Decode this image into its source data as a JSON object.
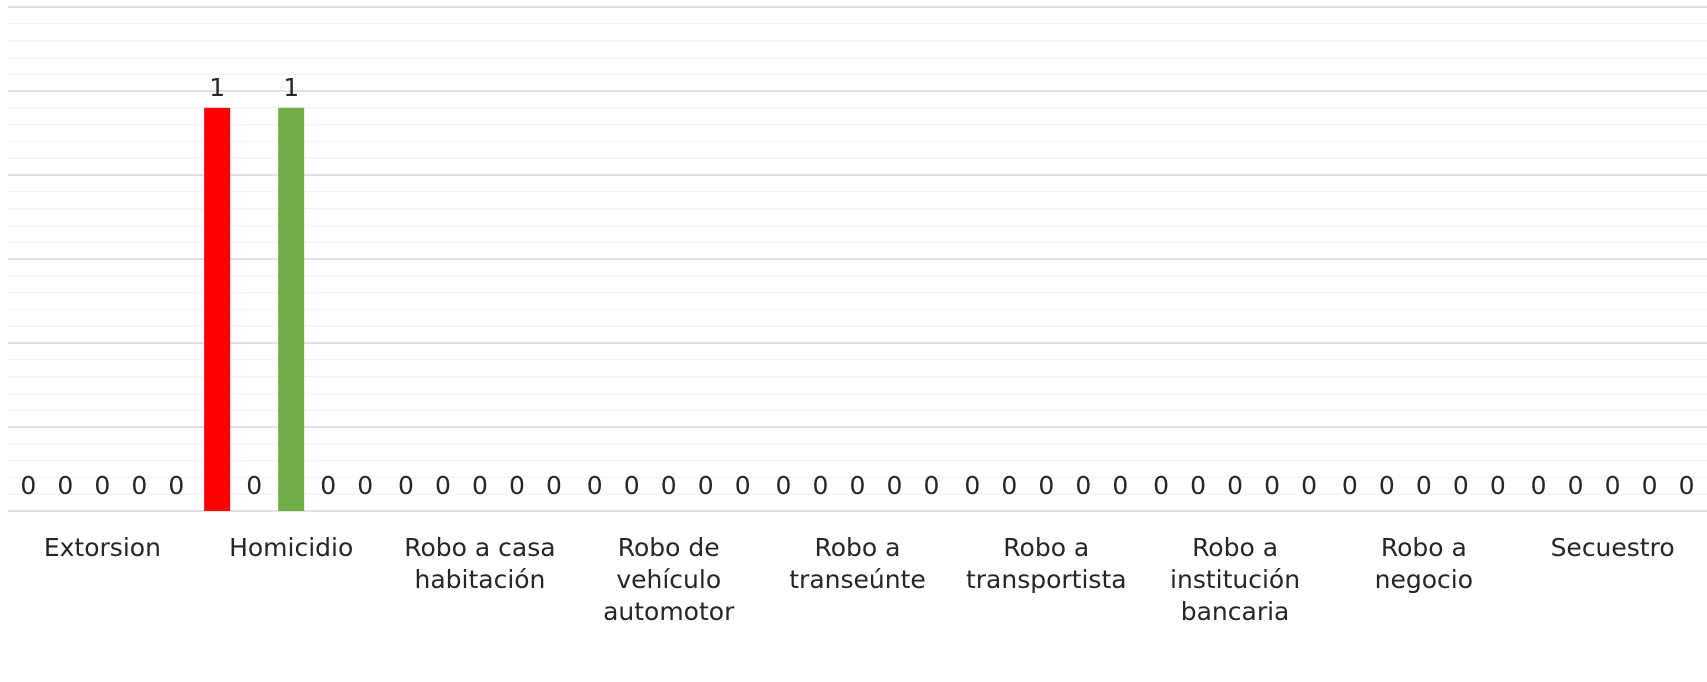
{
  "chart_data": {
    "type": "bar",
    "title": "",
    "xlabel": "",
    "ylabel": "",
    "ylim": [
      0,
      1.25
    ],
    "grid": true,
    "legend": "none",
    "categories": [
      "Extorsion",
      "Homicidio",
      "Robo a casa habitación",
      "Robo de vehículo automotor",
      "Robo a transeúnte",
      "Robo a transportista",
      "Robo a institución bancaria",
      "Robo a negocio",
      "Secuestro"
    ],
    "category_lines": [
      [
        "Extorsion"
      ],
      [
        "Homicidio"
      ],
      [
        "Robo a casa",
        "habitación"
      ],
      [
        "Robo de",
        "vehículo",
        "automotor"
      ],
      [
        "Robo a",
        "transeúnte"
      ],
      [
        "Robo a",
        "transportista"
      ],
      [
        "Robo a",
        "institución",
        "bancaria"
      ],
      [
        "Robo a",
        "negocio"
      ],
      [
        "Secuestro"
      ]
    ],
    "series_colors": [
      "#FF0000",
      "#000000",
      "#70AD47",
      "#000000",
      "#000000"
    ],
    "series": [
      {
        "values": [
          0,
          1,
          0,
          0,
          0,
          0,
          0,
          0,
          0
        ]
      },
      {
        "values": [
          0,
          0,
          0,
          0,
          0,
          0,
          0,
          0,
          0
        ]
      },
      {
        "values": [
          0,
          1,
          0,
          0,
          0,
          0,
          0,
          0,
          0
        ]
      },
      {
        "values": [
          0,
          0,
          0,
          0,
          0,
          0,
          0,
          0,
          0
        ]
      },
      {
        "values": [
          0,
          0,
          0,
          0,
          0,
          0,
          0,
          0,
          0
        ]
      }
    ]
  }
}
